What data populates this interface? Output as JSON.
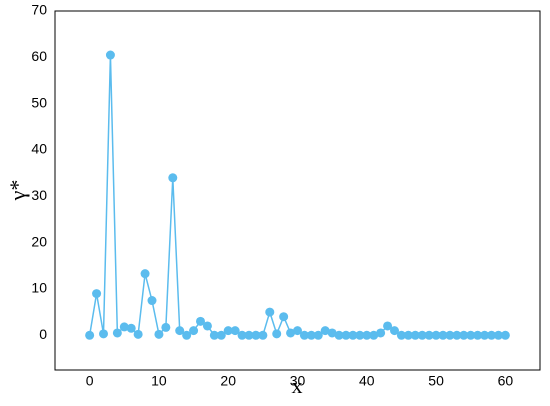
{
  "chart_data": {
    "type": "line",
    "xlabel": "x",
    "ylabel": "γ*",
    "x": [
      0,
      1,
      2,
      3,
      4,
      5,
      6,
      7,
      8,
      9,
      10,
      11,
      12,
      13,
      14,
      15,
      16,
      17,
      18,
      19,
      20,
      21,
      22,
      23,
      24,
      25,
      26,
      27,
      28,
      29,
      30,
      31,
      32,
      33,
      34,
      35,
      36,
      37,
      38,
      39,
      40,
      41,
      42,
      43,
      44,
      45,
      46,
      47,
      48,
      49,
      50,
      51,
      52,
      53,
      54,
      55,
      56,
      57,
      58,
      59,
      60
    ],
    "series": [
      {
        "color": "#5bbcee",
        "values": [
          0,
          9,
          0.3,
          60.5,
          0.5,
          1.8,
          1.5,
          0.2,
          13.3,
          7.5,
          0.2,
          1.7,
          34,
          1,
          0,
          1,
          3,
          2,
          0,
          0,
          1,
          1,
          0,
          0,
          0,
          0,
          5,
          0.3,
          4,
          0.5,
          1,
          0,
          0,
          0,
          1,
          0.5,
          0,
          0,
          0,
          0,
          0,
          0,
          0.5,
          2,
          1,
          0,
          0,
          0,
          0,
          0,
          0,
          0,
          0,
          0,
          0,
          0,
          0,
          0,
          0,
          0,
          0
        ]
      }
    ],
    "xlim": [
      -5,
      65
    ],
    "ylim": [
      -7.5,
      70
    ],
    "xticks": [
      0,
      10,
      20,
      30,
      40,
      50,
      60
    ],
    "yticks": [
      0,
      10,
      20,
      30,
      40,
      50,
      60,
      70
    ],
    "grid": false
  }
}
